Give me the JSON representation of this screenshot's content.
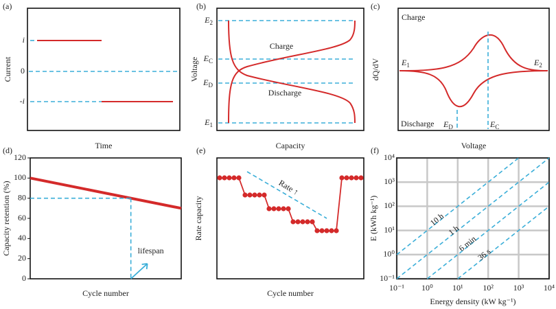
{
  "chart_data": [
    {
      "type": "schematic-current",
      "panel": "(a)",
      "x_label": "Time",
      "y_label": "Current",
      "y_labels": [
        "i",
        "0",
        "-i"
      ]
    },
    {
      "type": "schematic-voltage",
      "panel": "(b)",
      "x_label": "Capacity",
      "y_label": "Voltage",
      "levels": [
        {
          "text": "E",
          "sub": "2"
        },
        {
          "text": "E",
          "sub": "C"
        },
        {
          "text": "E",
          "sub": "D"
        },
        {
          "text": "E",
          "sub": "1"
        }
      ],
      "annotations": [
        "Charge",
        "Discharge"
      ]
    },
    {
      "type": "schematic-dqdv",
      "panel": "(c)",
      "x_label": "Voltage",
      "y_label": "dQ/dV",
      "annotations": [
        "Charge",
        "Discharge"
      ],
      "points": [
        {
          "text": "E",
          "sub": "1"
        },
        {
          "text": "E",
          "sub": "2"
        },
        {
          "text": "E",
          "sub": "D"
        },
        {
          "text": "E",
          "sub": "C"
        }
      ]
    },
    {
      "type": "line",
      "panel": "(d)",
      "x_label": "Cycle number",
      "y_label": "Capacity retention (%)",
      "ylim": [
        0,
        120
      ],
      "yticks": [
        0,
        20,
        40,
        60,
        80,
        100,
        120
      ],
      "values": [
        100,
        70
      ],
      "color": "#d42a2a",
      "threshold": 80,
      "annotation": "lifespan"
    },
    {
      "type": "schematic-rate",
      "panel": "(e)",
      "x_label": "Cycle number",
      "y_label": "Rate capacity",
      "annotation": "Rate ↑"
    },
    {
      "type": "loglog",
      "panel": "(f)",
      "x_label": "Energy density (kW kg⁻¹)",
      "y_label": "E (kWh kg⁻¹)",
      "log_x": true,
      "log_y": true,
      "grid": true,
      "xlim": [
        0.1,
        10000
      ],
      "ylim": [
        0.1,
        10000
      ],
      "xticks": [
        {
          "value": 0.1,
          "label": "10⁻¹"
        },
        {
          "value": 1,
          "label": "10⁰"
        },
        {
          "value": 10,
          "label": "10¹"
        },
        {
          "value": 100,
          "label": "10²"
        },
        {
          "value": 1000,
          "label": "10³"
        },
        {
          "value": 10000,
          "label": "10⁴"
        }
      ],
      "yticks": [
        {
          "value": 0.1,
          "label": "10⁻¹"
        },
        {
          "value": 1,
          "label": "10⁰"
        },
        {
          "value": 10,
          "label": "10¹"
        },
        {
          "value": 100,
          "label": "10²"
        },
        {
          "value": 1000,
          "label": "10³"
        },
        {
          "value": 10000,
          "label": "10⁴"
        }
      ],
      "series": [
        {
          "name": "10 h",
          "color": "#3aaed8",
          "x": [
            0.1,
            1000
          ],
          "values": [
            1,
            10000
          ]
        },
        {
          "name": "1 h",
          "color": "#3aaed8",
          "x": [
            0.1,
            10000
          ],
          "values": [
            0.1,
            10000
          ]
        },
        {
          "name": "6 min",
          "color": "#3aaed8",
          "x": [
            1,
            10000
          ],
          "values": [
            0.1,
            1000
          ]
        },
        {
          "name": "36 s",
          "color": "#3aaed8",
          "x": [
            10,
            10000
          ],
          "values": [
            0.1,
            100
          ]
        }
      ]
    }
  ]
}
